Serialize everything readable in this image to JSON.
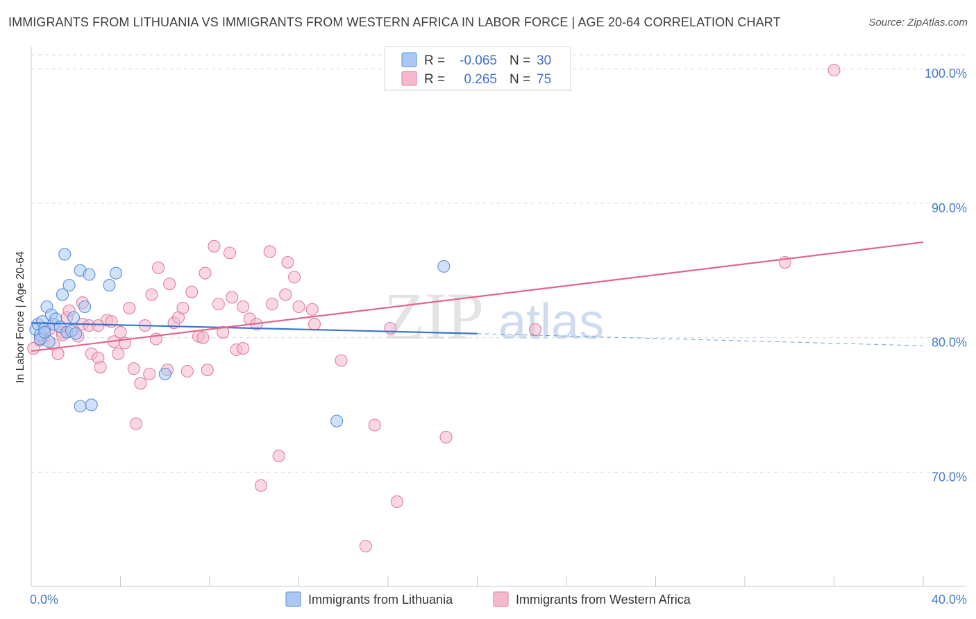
{
  "header": {
    "title": "IMMIGRANTS FROM LITHUANIA VS IMMIGRANTS FROM WESTERN AFRICA IN LABOR FORCE | AGE 20-64 CORRELATION CHART",
    "source": "Source: ZipAtlas.com"
  },
  "watermark": {
    "part1": "ZIP",
    "part2": "atlas"
  },
  "colors": {
    "lithuania_fill": "#a9c8f2",
    "lithuania_stroke": "#5b8fd9",
    "lithuania_line": "#3a74cc",
    "wafrica_fill": "#f6b8cc",
    "wafrica_stroke": "#e07ea0",
    "wafrica_line": "#e0668f",
    "grid": "#d8d8d8",
    "axis_label": "#4a7bd0"
  },
  "legend": {
    "rows": [
      {
        "r_label": "R =",
        "r_value": "-0.065",
        "n_label": "N =",
        "n_value": "30"
      },
      {
        "r_label": "R =",
        "r_value": "0.265",
        "n_label": "N =",
        "n_value": "75"
      }
    ]
  },
  "chart_data": {
    "type": "scatter",
    "title": "IMMIGRANTS FROM LITHUANIA VS IMMIGRANTS FROM WESTERN AFRICA IN LABOR FORCE | AGE 20-64 CORRELATION CHART",
    "xlabel": "",
    "ylabel": "In Labor Force | Age 20-64",
    "xlim": [
      0,
      40
    ],
    "ylim": [
      61.5,
      101.5
    ],
    "x_tick_labels": [
      "0.0%",
      "40.0%"
    ],
    "y_ticks": [
      70,
      80,
      90,
      100
    ],
    "y_tick_labels": [
      "70.0%",
      "80.0%",
      "90.0%",
      "100.0%"
    ],
    "legend_position": "top-center",
    "series": [
      {
        "name": "Immigrants from Lithuania",
        "r": -0.065,
        "n": 30,
        "trend": {
          "x0": 0.0,
          "y0": 81.1,
          "x1": 20.0,
          "y1": 80.3,
          "dashed_to_x": 40.0,
          "dashed_to_y": 79.4
        },
        "points": [
          [
            0.2,
            80.6
          ],
          [
            0.3,
            81.0
          ],
          [
            0.4,
            80.2
          ],
          [
            0.5,
            81.2
          ],
          [
            0.6,
            80.7
          ],
          [
            0.7,
            82.3
          ],
          [
            0.8,
            79.7
          ],
          [
            0.9,
            81.7
          ],
          [
            1.0,
            81.0
          ],
          [
            1.1,
            81.4
          ],
          [
            1.3,
            80.8
          ],
          [
            1.4,
            83.2
          ],
          [
            1.5,
            86.2
          ],
          [
            1.6,
            80.4
          ],
          [
            1.7,
            83.9
          ],
          [
            1.8,
            80.5
          ],
          [
            1.9,
            81.5
          ],
          [
            2.0,
            80.3
          ],
          [
            2.2,
            85.0
          ],
          [
            2.4,
            82.3
          ],
          [
            2.6,
            84.7
          ],
          [
            3.5,
            83.9
          ],
          [
            3.8,
            84.8
          ],
          [
            6.0,
            77.3
          ],
          [
            2.2,
            74.9
          ],
          [
            2.7,
            75.0
          ],
          [
            13.7,
            73.8
          ],
          [
            18.5,
            85.3
          ],
          [
            0.4,
            79.9
          ],
          [
            0.6,
            80.4
          ]
        ]
      },
      {
        "name": "Immigrants from Western Africa",
        "r": 0.265,
        "n": 75,
        "trend": {
          "x0": 0.0,
          "y0": 79.0,
          "x1": 40.0,
          "y1": 87.1
        },
        "points": [
          [
            0.1,
            79.2
          ],
          [
            0.4,
            79.8
          ],
          [
            0.6,
            80.3
          ],
          [
            0.8,
            80.6
          ],
          [
            1.0,
            79.5
          ],
          [
            1.2,
            78.8
          ],
          [
            1.4,
            80.4
          ],
          [
            1.6,
            81.5
          ],
          [
            1.7,
            82.0
          ],
          [
            1.9,
            80.6
          ],
          [
            2.1,
            80.1
          ],
          [
            2.3,
            81.0
          ],
          [
            2.3,
            82.6
          ],
          [
            2.6,
            80.9
          ],
          [
            2.7,
            78.8
          ],
          [
            3.0,
            78.5
          ],
          [
            3.1,
            77.8
          ],
          [
            3.4,
            81.3
          ],
          [
            3.6,
            81.2
          ],
          [
            3.7,
            79.7
          ],
          [
            3.9,
            78.8
          ],
          [
            4.0,
            80.4
          ],
          [
            4.2,
            79.6
          ],
          [
            4.4,
            82.2
          ],
          [
            4.6,
            77.7
          ],
          [
            4.7,
            73.6
          ],
          [
            4.9,
            76.6
          ],
          [
            5.1,
            80.9
          ],
          [
            5.3,
            77.3
          ],
          [
            5.4,
            83.2
          ],
          [
            5.6,
            79.9
          ],
          [
            5.7,
            85.2
          ],
          [
            6.1,
            77.6
          ],
          [
            6.2,
            84.0
          ],
          [
            6.4,
            81.1
          ],
          [
            6.6,
            81.5
          ],
          [
            6.8,
            82.2
          ],
          [
            7.0,
            77.5
          ],
          [
            7.2,
            83.4
          ],
          [
            7.5,
            80.1
          ],
          [
            7.7,
            80.0
          ],
          [
            7.8,
            84.8
          ],
          [
            7.9,
            77.6
          ],
          [
            8.2,
            86.8
          ],
          [
            8.4,
            82.5
          ],
          [
            8.6,
            80.4
          ],
          [
            8.9,
            86.3
          ],
          [
            9.0,
            83.0
          ],
          [
            9.2,
            79.1
          ],
          [
            9.5,
            82.3
          ],
          [
            9.5,
            79.2
          ],
          [
            9.8,
            81.4
          ],
          [
            10.1,
            81.0
          ],
          [
            10.3,
            69.0
          ],
          [
            10.7,
            86.4
          ],
          [
            10.8,
            82.5
          ],
          [
            11.1,
            71.2
          ],
          [
            11.4,
            83.2
          ],
          [
            11.5,
            85.6
          ],
          [
            11.8,
            84.5
          ],
          [
            12.0,
            82.3
          ],
          [
            12.6,
            82.1
          ],
          [
            12.7,
            81.0
          ],
          [
            13.9,
            78.3
          ],
          [
            15.0,
            64.5
          ],
          [
            15.4,
            73.5
          ],
          [
            16.1,
            80.7
          ],
          [
            16.4,
            67.8
          ],
          [
            18.6,
            72.6
          ],
          [
            22.6,
            80.6
          ],
          [
            33.8,
            85.6
          ],
          [
            36.0,
            99.9
          ],
          [
            1.4,
            80.2
          ],
          [
            0.5,
            80.0
          ],
          [
            3.0,
            80.9
          ]
        ]
      }
    ]
  },
  "bottom_legend": {
    "items": [
      {
        "label": "Immigrants from Lithuania"
      },
      {
        "label": "Immigrants from Western Africa"
      }
    ]
  }
}
